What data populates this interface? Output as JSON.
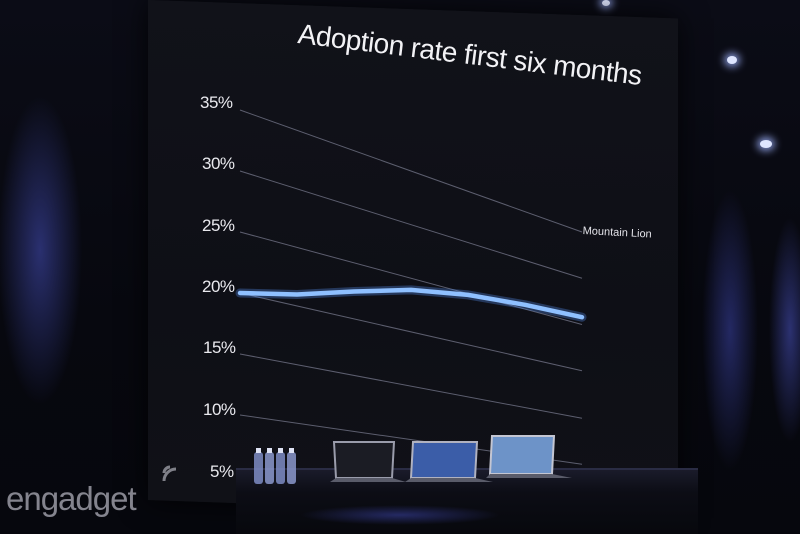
{
  "chart_data": {
    "type": "line",
    "title": "Adoption rate first six months",
    "yticks": [
      "35%",
      "30%",
      "25%",
      "20%",
      "15%",
      "10%",
      "5%"
    ],
    "ylim": [
      5,
      35
    ],
    "x": [
      0,
      1,
      2,
      3,
      4,
      5,
      6
    ],
    "series": [
      {
        "name": "Mountain Lion",
        "values": [
          20,
          21,
          22.5,
          24,
          25,
          25.6,
          26
        ]
      }
    ],
    "grid": true,
    "legend": "end-of-line"
  },
  "watermark": "engadget",
  "colors": {
    "line": "#8fc0ff",
    "grid": "#6a6c7e",
    "text": "#eeeef2"
  }
}
